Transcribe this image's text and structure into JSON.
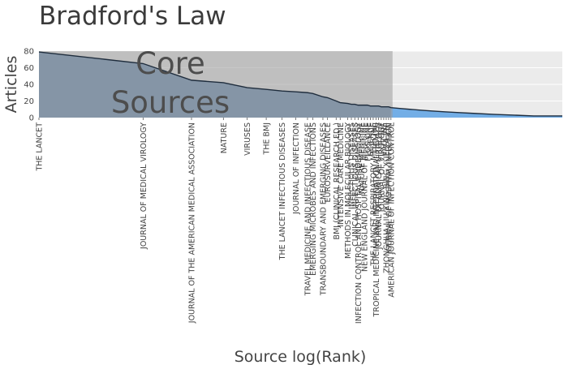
{
  "chart_data": {
    "type": "area",
    "title": "Bradford's Law",
    "xlabel": "Source log(Rank)",
    "ylabel": "Articles",
    "ylim": [
      0,
      80
    ],
    "yticks": [
      0,
      20,
      40,
      60,
      80
    ],
    "x_scale": "log",
    "total_sources": 250,
    "core_label_line1": "Core",
    "core_label_line2": "Sources",
    "core_zone_last_rank": 41,
    "grid": true,
    "colors": {
      "area": "#6b8fb4",
      "area_outside_core": "#73aee6",
      "core_shade": "#9a9a9a",
      "line": "#1f2d3d",
      "plot_background": "#ebebeb"
    },
    "sources": [
      {
        "rank": 1,
        "label": "THE LANCET",
        "articles": 79
      },
      {
        "rank": 3,
        "label": "JOURNAL OF MEDICAL VIROLOGY",
        "articles": 65
      },
      {
        "rank": 5,
        "label": "JOURNAL OF THE AMERICAN MEDICAL ASSOCIATION",
        "articles": 45
      },
      {
        "rank": 7,
        "label": "NATURE",
        "articles": 42
      },
      {
        "rank": 9,
        "label": "VIRUSES",
        "articles": 36
      },
      {
        "rank": 11,
        "label": "THE BMJ",
        "articles": 34
      },
      {
        "rank": 13,
        "label": "THE LANCET INFECTIOUS DISEASES",
        "articles": 32
      },
      {
        "rank": 15,
        "label": "JOURNAL OF INFECTION",
        "articles": 31
      },
      {
        "rank": 17,
        "label": "TRAVEL MEDICINE AND INFECTIOUS DISEASE",
        "articles": 30
      },
      {
        "rank": 18,
        "label": "EMERGING MICROBES AND INFECTIONS",
        "articles": 29
      },
      {
        "rank": 20,
        "label": "TRANSBOUNDARY AND EMERGING DISEASES",
        "articles": 25
      },
      {
        "rank": 21,
        "label": "EUROSURVEILLANCE",
        "articles": 24
      },
      {
        "rank": 23,
        "label": "BMJ (CLINICAL RESEARCH ED.)",
        "articles": 20
      },
      {
        "rank": 24,
        "label": "INTENSIVE CARE MEDICINE",
        "articles": 18
      },
      {
        "rank": 26,
        "label": "METHODS IN MOLECULAR BIOLOGY",
        "articles": 17
      },
      {
        "rank": 27,
        "label": "INFECTIOUS DISEASES",
        "articles": 16
      },
      {
        "rank": 28,
        "label": "CLINICAL INFECTIOUS DISEASES",
        "articles": 16
      },
      {
        "rank": 29,
        "label": "INFECTION CONTROL AND HOSPITAL EPIDEMIOLOGY",
        "articles": 15
      },
      {
        "rank": 30,
        "label": "NATURE MEDICINE",
        "articles": 15
      },
      {
        "rank": 31,
        "label": "NEW ENGLAND JOURNAL OF MEDICINE",
        "articles": 15
      },
      {
        "rank": 32,
        "label": "PLOS ONE",
        "articles": 15
      },
      {
        "rank": 33,
        "label": "SCIENCE",
        "articles": 14
      },
      {
        "rank": 34,
        "label": "THE LANCET RESPIRATORY MEDICINE",
        "articles": 14
      },
      {
        "rank": 35,
        "label": "TROPICAL MEDICINE AND INTERNATIONAL HEALTH",
        "articles": 14
      },
      {
        "rank": 36,
        "label": "JOURNAL OF CLINICAL VIROLOGY",
        "articles": 14
      },
      {
        "rank": 37,
        "label": "JOURNAL OF VIROLOGY",
        "articles": 13
      },
      {
        "rank": 38,
        "label": "VACCINE",
        "articles": 13
      },
      {
        "rank": 39,
        "label": "ZHONGHUA LIU XING BING XUE ZA ZHI",
        "articles": 13
      },
      {
        "rank": 40,
        "label": "JOURNAL OF HOSPITAL INFECTION",
        "articles": 13
      },
      {
        "rank": 41,
        "label": "AMERICAN JOURNAL OF INFECTION CONTROL",
        "articles": 12
      }
    ],
    "tail": [
      {
        "rank": 45,
        "articles": 11
      },
      {
        "rank": 50,
        "articles": 10
      },
      {
        "rank": 56,
        "articles": 9
      },
      {
        "rank": 63,
        "articles": 8
      },
      {
        "rank": 72,
        "articles": 7
      },
      {
        "rank": 84,
        "articles": 6
      },
      {
        "rank": 100,
        "articles": 5
      },
      {
        "rank": 120,
        "articles": 4
      },
      {
        "rank": 150,
        "articles": 3
      },
      {
        "rank": 185,
        "articles": 2
      },
      {
        "rank": 250,
        "articles": 2
      }
    ]
  }
}
